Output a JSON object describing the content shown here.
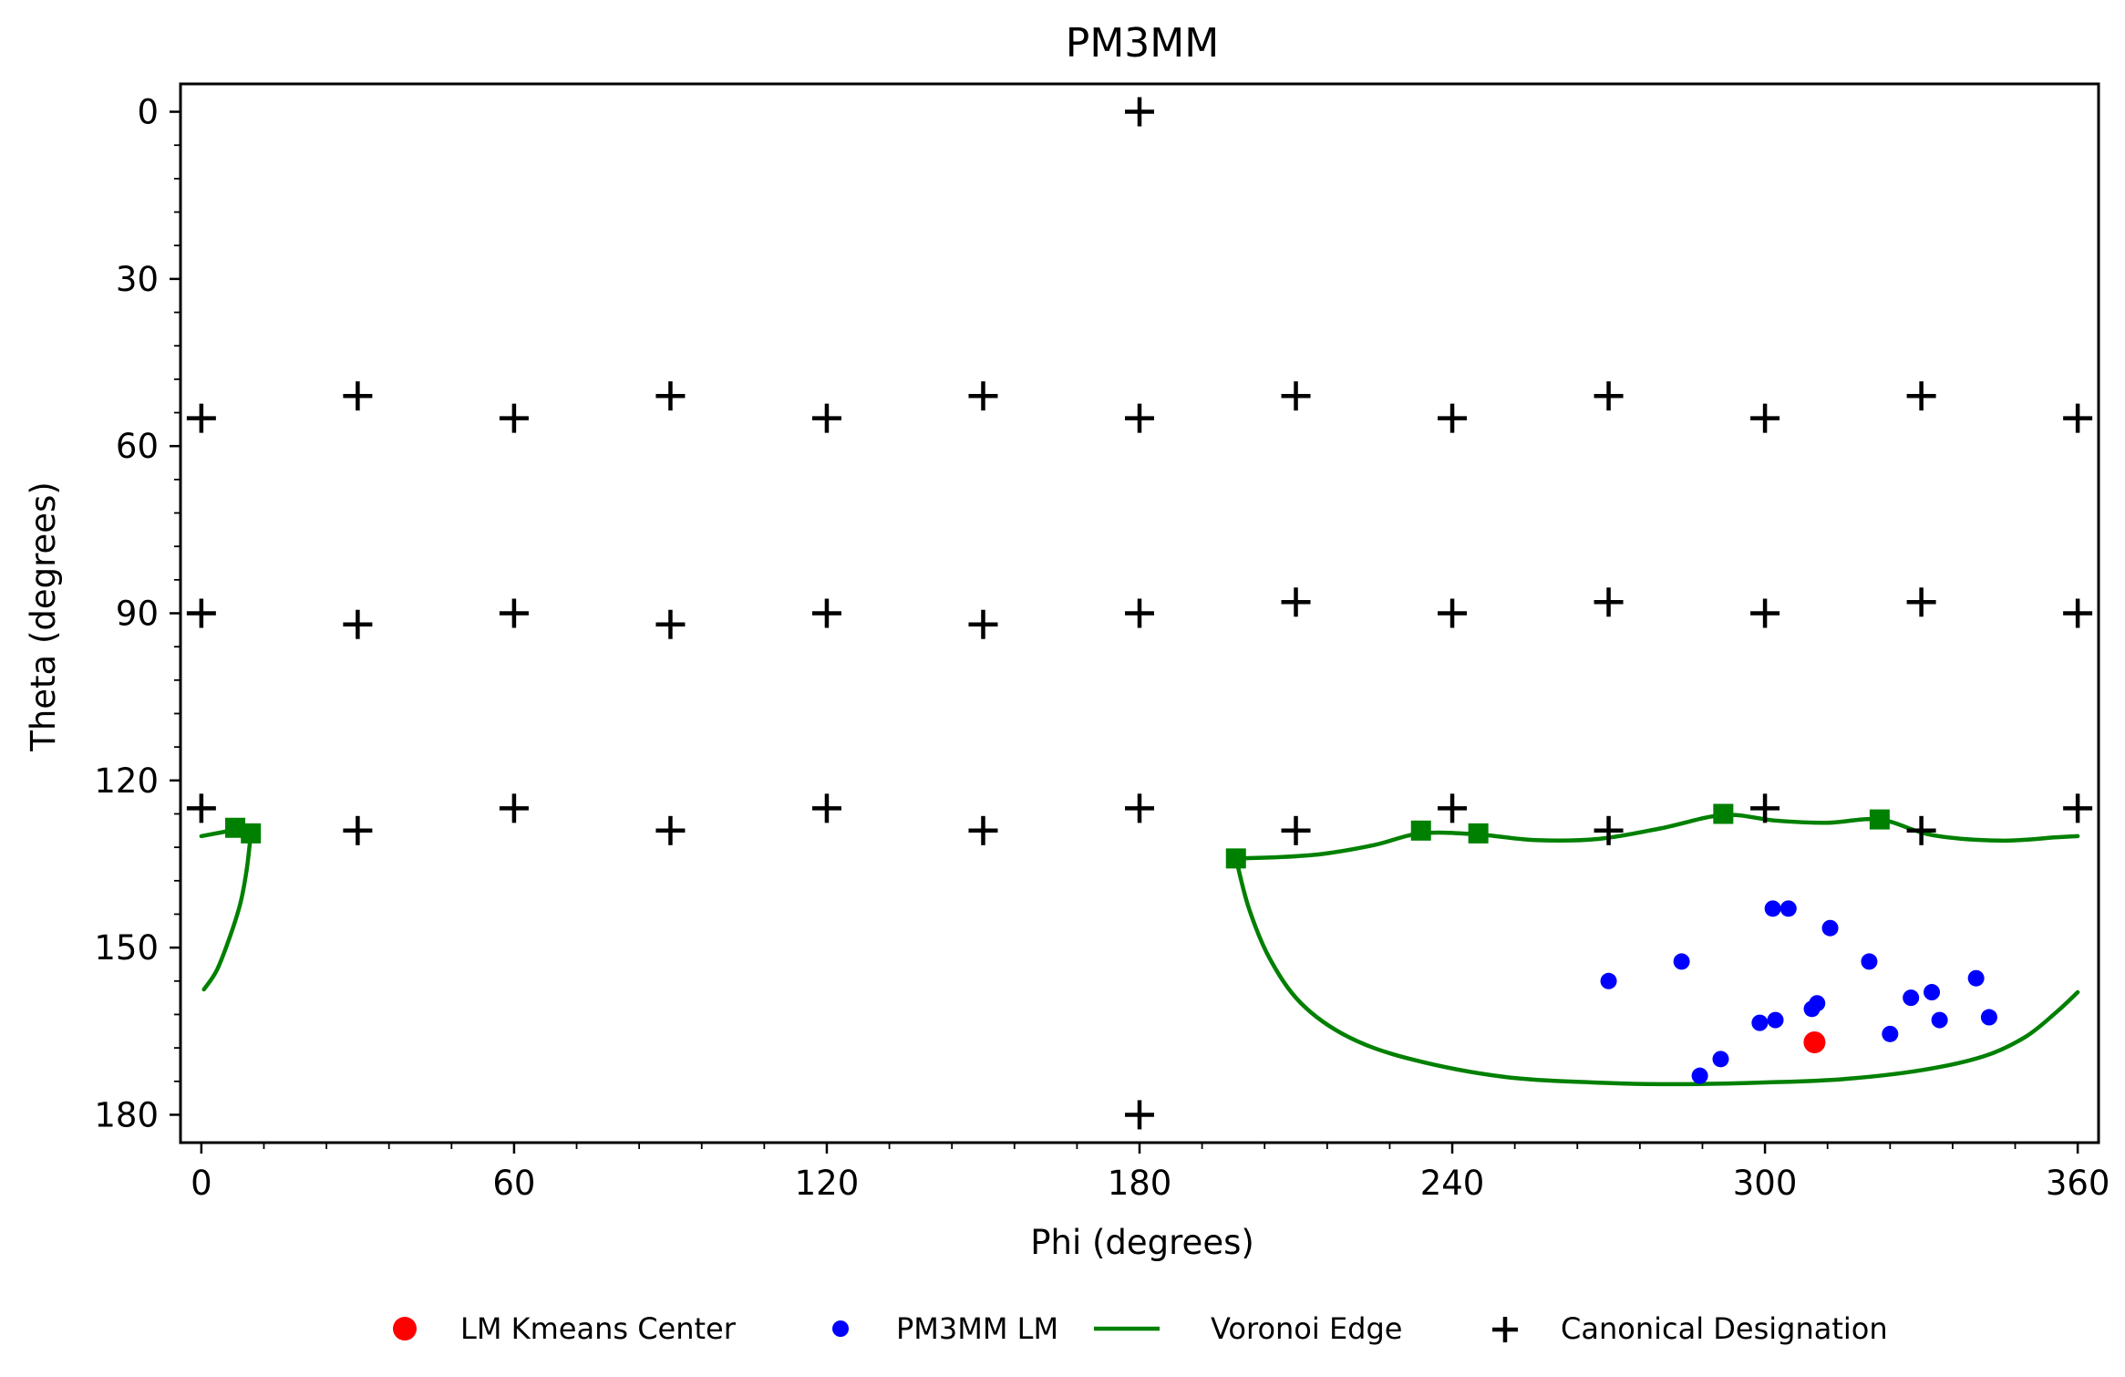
{
  "chart_data": {
    "type": "scatter",
    "title": "PM3MM",
    "xlabel": "Phi (degrees)",
    "ylabel": "Theta (degrees)",
    "xlim": [
      -4,
      364
    ],
    "ylim": [
      185,
      -5
    ],
    "y_inverted": true,
    "x_ticks": [
      0,
      60,
      120,
      180,
      240,
      300,
      360
    ],
    "x_tick_labels": [
      "0",
      "60",
      "120",
      "180",
      "240",
      "300",
      "360"
    ],
    "y_ticks": [
      0,
      30,
      60,
      90,
      120,
      150,
      180
    ],
    "y_tick_labels": [
      "0",
      "30",
      "60",
      "90",
      "120",
      "150",
      "180"
    ],
    "grid": false,
    "legend_placement": "bottom-center",
    "legend": [
      {
        "label": "LM Kmeans Center",
        "marker": "circle",
        "color": "#ff0000"
      },
      {
        "label": "PM3MM LM",
        "marker": "small-circle",
        "color": "#0000ff"
      },
      {
        "label": "Voronoi Edge",
        "marker": "line",
        "color": "#008000"
      },
      {
        "label": "Canonical Designation",
        "marker": "plus",
        "color": "#000000"
      }
    ],
    "series": [
      {
        "name": "LM Kmeans Center",
        "color": "#ff0000",
        "points": [
          [
            309.5,
            167
          ]
        ]
      },
      {
        "name": "PM3MM LM",
        "color": "#0000ff",
        "points": [
          [
            270,
            156
          ],
          [
            284,
            152.5
          ],
          [
            301.5,
            143
          ],
          [
            304.5,
            143
          ],
          [
            312.5,
            146.5
          ],
          [
            320,
            152.5
          ],
          [
            328,
            159
          ],
          [
            332,
            158
          ],
          [
            340.5,
            155.5
          ],
          [
            343,
            162.5
          ],
          [
            333.5,
            163
          ],
          [
            324,
            165.5
          ],
          [
            309,
            161
          ],
          [
            310,
            160
          ],
          [
            302,
            163
          ],
          [
            299,
            163.5
          ],
          [
            291.5,
            170
          ],
          [
            287.5,
            173
          ]
        ]
      },
      {
        "name": "Voronoi Edge",
        "color": "#008000",
        "segments": [
          {
            "kind": "poly",
            "points": [
              [
                0,
                130
              ],
              [
                4,
                129.3
              ],
              [
                7,
                128.8
              ],
              [
                9.5,
                129.5
              ]
            ]
          },
          {
            "kind": "poly",
            "points": [
              [
                9.5,
                129.5
              ],
              [
                8.7,
                136
              ],
              [
                7.5,
                142
              ],
              [
                5.5,
                148
              ],
              [
                3,
                154
              ],
              [
                0.5,
                157.5
              ]
            ]
          },
          {
            "kind": "poly",
            "points": [
              [
                198.5,
                134
              ],
              [
                206,
                133.8
              ],
              [
                215,
                133.2
              ],
              [
                225,
                131.6
              ],
              [
                234,
                129.5
              ],
              [
                245,
                129.7
              ],
              [
                256,
                130.7
              ],
              [
                268,
                130.5
              ],
              [
                280,
                128.6
              ],
              [
                292,
                126.2
              ],
              [
                302,
                127.2
              ],
              [
                312,
                127.6
              ],
              [
                322,
                127
              ],
              [
                332,
                129.8
              ],
              [
                345,
                130.8
              ],
              [
                356,
                130.2
              ],
              [
                360,
                130
              ]
            ]
          },
          {
            "kind": "poly",
            "points": [
              [
                198.5,
                134
              ],
              [
                201,
                143
              ],
              [
                205,
                152
              ],
              [
                211,
                160
              ],
              [
                220,
                166
              ],
              [
                232,
                170
              ],
              [
                250,
                173.2
              ],
              [
                270,
                174.3
              ],
              [
                285,
                174.5
              ],
              [
                300,
                174.2
              ],
              [
                315,
                173.6
              ],
              [
                330,
                172
              ],
              [
                342,
                169.5
              ],
              [
                350,
                166
              ],
              [
                356,
                161.5
              ],
              [
                360,
                158
              ]
            ]
          }
        ],
        "vertices": [
          [
            6.5,
            128.5
          ],
          [
            9.5,
            129.5
          ],
          [
            198.5,
            134
          ],
          [
            234,
            129
          ],
          [
            245,
            129.5
          ],
          [
            292,
            126
          ],
          [
            322,
            127
          ]
        ]
      },
      {
        "name": "Canonical Designation",
        "color": "#000000",
        "points": [
          [
            180,
            0
          ],
          [
            0,
            55
          ],
          [
            30,
            51
          ],
          [
            60,
            55
          ],
          [
            90,
            51
          ],
          [
            120,
            55
          ],
          [
            150,
            51
          ],
          [
            180,
            55
          ],
          [
            210,
            51
          ],
          [
            240,
            55
          ],
          [
            270,
            51
          ],
          [
            300,
            55
          ],
          [
            330,
            51
          ],
          [
            360,
            55
          ],
          [
            0,
            90
          ],
          [
            30,
            92
          ],
          [
            60,
            90
          ],
          [
            90,
            92
          ],
          [
            120,
            90
          ],
          [
            150,
            92
          ],
          [
            180,
            90
          ],
          [
            210,
            88
          ],
          [
            240,
            90
          ],
          [
            270,
            88
          ],
          [
            300,
            90
          ],
          [
            330,
            88
          ],
          [
            360,
            90
          ],
          [
            0,
            125
          ],
          [
            30,
            129
          ],
          [
            60,
            125
          ],
          [
            90,
            129
          ],
          [
            120,
            125
          ],
          [
            150,
            129
          ],
          [
            180,
            125
          ],
          [
            210,
            129
          ],
          [
            240,
            125
          ],
          [
            270,
            129
          ],
          [
            300,
            125
          ],
          [
            330,
            129
          ],
          [
            360,
            125
          ],
          [
            180,
            180
          ]
        ]
      }
    ]
  }
}
